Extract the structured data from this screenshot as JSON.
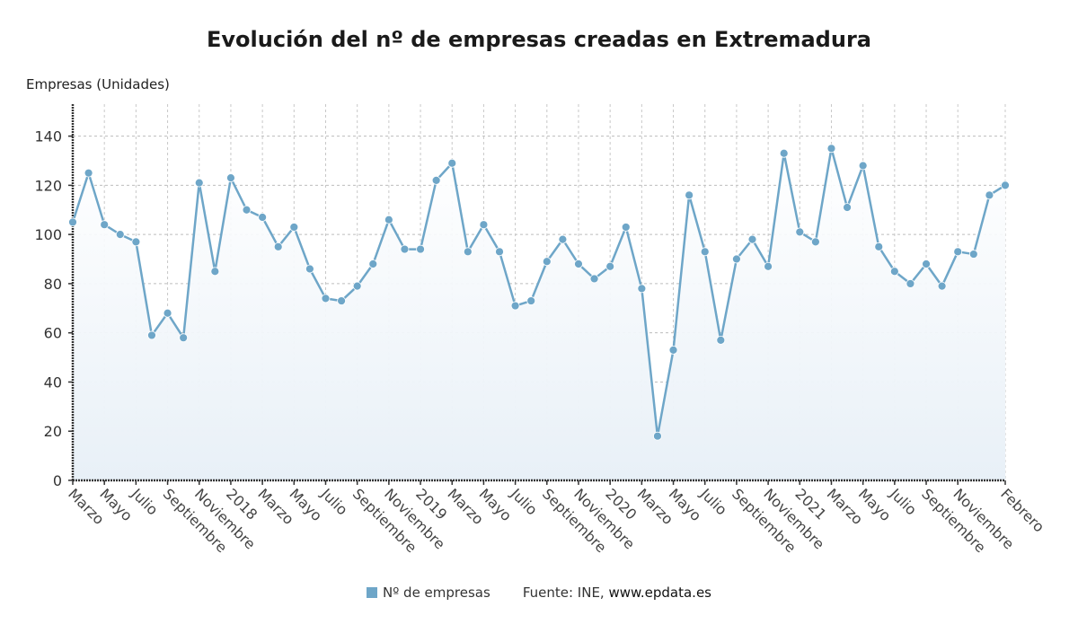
{
  "chart_data": {
    "type": "area",
    "title": "Evolución del nº de empresas creadas en Extremadura",
    "xlabel": "",
    "ylabel": "Empresas (Unidades)",
    "ylim": [
      0,
      153
    ],
    "yticks": [
      0,
      20,
      40,
      60,
      80,
      100,
      120,
      140
    ],
    "grid": true,
    "legend_position": "bottom-center",
    "x": [
      "2017-03",
      "2017-04",
      "2017-05",
      "2017-06",
      "2017-07",
      "2017-08",
      "2017-09",
      "2017-10",
      "2017-11",
      "2017-12",
      "2018-01",
      "2018-02",
      "2018-03",
      "2018-04",
      "2018-05",
      "2018-06",
      "2018-07",
      "2018-08",
      "2018-09",
      "2018-10",
      "2018-11",
      "2018-12",
      "2019-01",
      "2019-02",
      "2019-03",
      "2019-04",
      "2019-05",
      "2019-06",
      "2019-07",
      "2019-08",
      "2019-09",
      "2019-10",
      "2019-11",
      "2019-12",
      "2020-01",
      "2020-02",
      "2020-03",
      "2020-04",
      "2020-05",
      "2020-06",
      "2020-07",
      "2020-08",
      "2020-09",
      "2020-10",
      "2020-11",
      "2020-12",
      "2021-01",
      "2021-02",
      "2021-03",
      "2021-04",
      "2021-05",
      "2021-06",
      "2021-07",
      "2021-08",
      "2021-09",
      "2021-10",
      "2021-11",
      "2021-12",
      "2022-01",
      "2022-02"
    ],
    "xtick_labels": [
      {
        "index": 0,
        "label": "Marzo"
      },
      {
        "index": 2,
        "label": "Mayo"
      },
      {
        "index": 4,
        "label": "Julio"
      },
      {
        "index": 6,
        "label": "Septiembre"
      },
      {
        "index": 8,
        "label": "Noviembre"
      },
      {
        "index": 10,
        "label": "2018"
      },
      {
        "index": 12,
        "label": "Marzo"
      },
      {
        "index": 14,
        "label": "Mayo"
      },
      {
        "index": 16,
        "label": "Julio"
      },
      {
        "index": 18,
        "label": "Septiembre"
      },
      {
        "index": 20,
        "label": "Noviembre"
      },
      {
        "index": 22,
        "label": "2019"
      },
      {
        "index": 24,
        "label": "Marzo"
      },
      {
        "index": 26,
        "label": "Mayo"
      },
      {
        "index": 28,
        "label": "Julio"
      },
      {
        "index": 30,
        "label": "Septiembre"
      },
      {
        "index": 32,
        "label": "Noviembre"
      },
      {
        "index": 34,
        "label": "2020"
      },
      {
        "index": 36,
        "label": "Marzo"
      },
      {
        "index": 38,
        "label": "Mayo"
      },
      {
        "index": 40,
        "label": "Julio"
      },
      {
        "index": 42,
        "label": "Septiembre"
      },
      {
        "index": 44,
        "label": "Noviembre"
      },
      {
        "index": 46,
        "label": "2021"
      },
      {
        "index": 48,
        "label": "Marzo"
      },
      {
        "index": 50,
        "label": "Mayo"
      },
      {
        "index": 52,
        "label": "Julio"
      },
      {
        "index": 54,
        "label": "Septiembre"
      },
      {
        "index": 56,
        "label": "Noviembre"
      },
      {
        "index": 59,
        "label": "Febrero"
      }
    ],
    "series": [
      {
        "name": "Nº de empresas",
        "color": "#6ea6c8",
        "values": [
          105,
          125,
          104,
          100,
          97,
          59,
          68,
          58,
          121,
          85,
          123,
          110,
          107,
          95,
          103,
          86,
          74,
          73,
          79,
          88,
          106,
          94,
          94,
          122,
          129,
          93,
          104,
          93,
          71,
          73,
          89,
          98,
          88,
          82,
          87,
          103,
          78,
          18,
          53,
          116,
          93,
          57,
          90,
          98,
          87,
          133,
          101,
          97,
          135,
          111,
          128,
          95,
          85,
          80,
          88,
          79,
          93,
          92,
          116,
          120
        ]
      }
    ],
    "source_prefix": "Fuente: INE, ",
    "source_site": "www.epdata.es"
  }
}
